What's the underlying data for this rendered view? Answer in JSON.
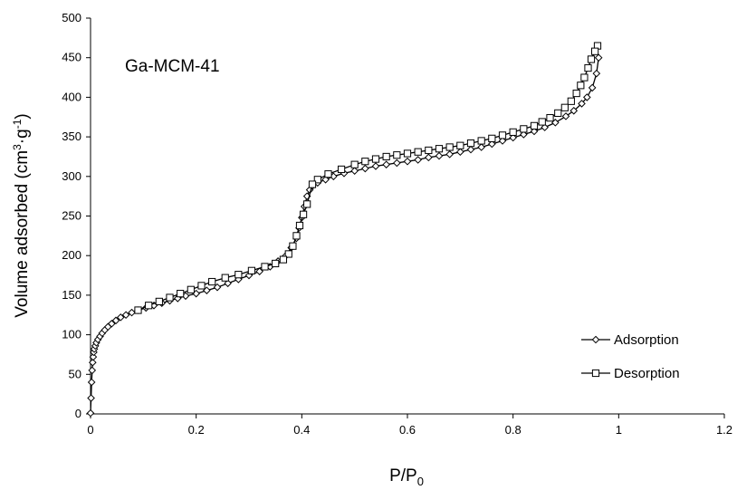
{
  "chart_data": {
    "type": "scatter",
    "title": "",
    "annotation": "Ga-MCM-41",
    "xlabel": {
      "main": "P/P",
      "sub": "0"
    },
    "ylabel": {
      "main": "Volume adsorbed (cm",
      "sup1": "3",
      "mid": "·g",
      "sup2": "-1",
      "end": ")"
    },
    "xlim": [
      0,
      1.2
    ],
    "ylim": [
      0,
      500
    ],
    "x_ticks": [
      0,
      0.2,
      0.4,
      0.6,
      0.8,
      1,
      1.2
    ],
    "x_tick_labels": [
      "0",
      "0.2",
      "0.4",
      "0.6",
      "0.8",
      "1",
      "1.2"
    ],
    "y_ticks": [
      0,
      50,
      100,
      150,
      200,
      250,
      300,
      350,
      400,
      450,
      500
    ],
    "y_tick_labels": [
      "0",
      "50",
      "100",
      "150",
      "200",
      "250",
      "300",
      "350",
      "400",
      "450",
      "500"
    ],
    "grid": false,
    "legend_position": "bottom-right",
    "series": [
      {
        "name": "Adsorption",
        "marker": "diamond",
        "color": "#000000",
        "x": [
          0.0,
          0.001,
          0.002,
          0.003,
          0.004,
          0.005,
          0.006,
          0.007,
          0.009,
          0.011,
          0.014,
          0.018,
          0.022,
          0.027,
          0.033,
          0.04,
          0.048,
          0.057,
          0.067,
          0.078,
          0.09,
          0.105,
          0.12,
          0.135,
          0.15,
          0.165,
          0.18,
          0.2,
          0.22,
          0.24,
          0.26,
          0.28,
          0.3,
          0.32,
          0.34,
          0.355,
          0.37,
          0.38,
          0.39,
          0.395,
          0.4,
          0.405,
          0.41,
          0.415,
          0.42,
          0.43,
          0.445,
          0.46,
          0.48,
          0.5,
          0.52,
          0.54,
          0.56,
          0.58,
          0.6,
          0.62,
          0.64,
          0.66,
          0.68,
          0.7,
          0.72,
          0.74,
          0.76,
          0.78,
          0.8,
          0.82,
          0.84,
          0.86,
          0.88,
          0.9,
          0.915,
          0.93,
          0.94,
          0.95,
          0.958,
          0.962
        ],
        "y": [
          1,
          20,
          40,
          55,
          65,
          72,
          78,
          82,
          86,
          90,
          94,
          98,
          102,
          106,
          110,
          114,
          118,
          122,
          125,
          128,
          131,
          134,
          137,
          140,
          143,
          146,
          149,
          152,
          156,
          160,
          165,
          170,
          175,
          180,
          186,
          193,
          200,
          210,
          222,
          235,
          248,
          262,
          275,
          283,
          288,
          292,
          296,
          300,
          304,
          307,
          310,
          313,
          315,
          317,
          319,
          321,
          324,
          326,
          328,
          331,
          334,
          337,
          341,
          345,
          349,
          353,
          357,
          362,
          368,
          376,
          383,
          392,
          400,
          412,
          430,
          450
        ]
      },
      {
        "name": "Desorption",
        "marker": "square",
        "color": "#000000",
        "x": [
          0.96,
          0.955,
          0.948,
          0.942,
          0.935,
          0.928,
          0.92,
          0.91,
          0.898,
          0.885,
          0.87,
          0.855,
          0.84,
          0.82,
          0.8,
          0.78,
          0.76,
          0.74,
          0.72,
          0.7,
          0.68,
          0.66,
          0.64,
          0.62,
          0.6,
          0.58,
          0.56,
          0.54,
          0.52,
          0.5,
          0.475,
          0.45,
          0.43,
          0.42,
          0.41,
          0.403,
          0.396,
          0.39,
          0.383,
          0.375,
          0.365,
          0.35,
          0.33,
          0.305,
          0.28,
          0.255,
          0.23,
          0.21,
          0.19,
          0.17,
          0.15,
          0.13,
          0.11,
          0.09
        ],
        "y": [
          465,
          458,
          448,
          437,
          425,
          415,
          405,
          395,
          387,
          380,
          374,
          369,
          364,
          360,
          356,
          352,
          348,
          345,
          342,
          339,
          337,
          335,
          333,
          331,
          329,
          327,
          325,
          322,
          319,
          315,
          309,
          303,
          296,
          290,
          265,
          252,
          238,
          225,
          212,
          202,
          195,
          190,
          186,
          181,
          176,
          172,
          167,
          162,
          157,
          152,
          147,
          142,
          137,
          131
        ]
      }
    ]
  }
}
